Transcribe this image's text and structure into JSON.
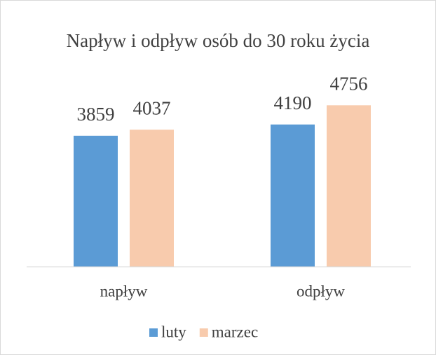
{
  "chart_data": {
    "type": "bar",
    "title": "Napływ i odpływ osób do 30 roku życia",
    "categories": [
      "napływ",
      "odpływ"
    ],
    "series": [
      {
        "name": "luty",
        "color": "#5b9bd5",
        "values": [
          3859,
          4190
        ]
      },
      {
        "name": "marzec",
        "color": "#f8cbad",
        "values": [
          4037,
          4756
        ]
      }
    ],
    "ylim": [
      0,
      6000
    ],
    "legend": "bottom"
  }
}
